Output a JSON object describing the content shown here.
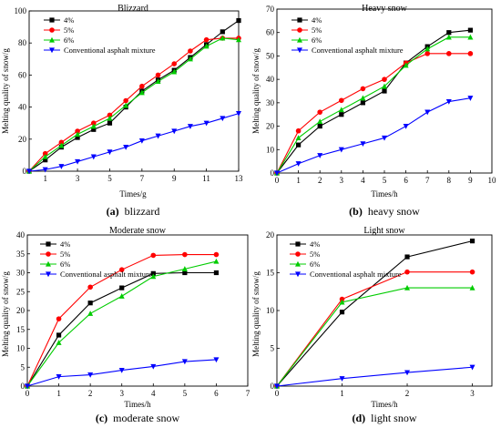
{
  "chart_data": [
    {
      "type": "line",
      "title": "Blizzard",
      "xlabel": "Times/g",
      "ylabel": "Melting quality of snow/g",
      "caption_letter": "(a)",
      "caption_text": "blizzard",
      "xlim": [
        0,
        13
      ],
      "ylim": [
        0,
        100
      ],
      "xticks": [
        1,
        3,
        5,
        7,
        9,
        11,
        13
      ],
      "yticks": [
        0,
        20,
        40,
        60,
        80,
        100
      ],
      "legend_position": "top-left",
      "series": [
        {
          "name": "4%",
          "color": "#000000",
          "marker": "square",
          "x": [
            0,
            1,
            2,
            3,
            4,
            5,
            6,
            7,
            8,
            9,
            10,
            11,
            12,
            13
          ],
          "y": [
            0,
            7,
            15,
            21,
            26,
            30,
            40,
            50,
            57,
            63,
            71,
            79,
            87,
            94
          ]
        },
        {
          "name": "5%",
          "color": "#ff0000",
          "marker": "circle",
          "x": [
            0,
            1,
            2,
            3,
            4,
            5,
            6,
            7,
            8,
            9,
            10,
            11,
            12,
            13
          ],
          "y": [
            0,
            11,
            18,
            25,
            30,
            35,
            44,
            53,
            60,
            67,
            75,
            82,
            83,
            83
          ]
        },
        {
          "name": "6%",
          "color": "#00cc00",
          "marker": "triangle",
          "x": [
            0,
            1,
            2,
            3,
            4,
            5,
            6,
            7,
            8,
            9,
            10,
            11,
            12,
            13
          ],
          "y": [
            0,
            9,
            16,
            23,
            28,
            33,
            41,
            49,
            56,
            62,
            70,
            78,
            83,
            82
          ]
        },
        {
          "name": "Conventional asphalt mixture",
          "color": "#0000ff",
          "marker": "tri-down",
          "x": [
            0,
            1,
            2,
            3,
            4,
            5,
            6,
            7,
            8,
            9,
            10,
            11,
            12,
            13
          ],
          "y": [
            0,
            1,
            3,
            6,
            9,
            12,
            15,
            19,
            22,
            25,
            28,
            30,
            33,
            36
          ]
        }
      ]
    },
    {
      "type": "line",
      "title": "Heavy snow",
      "xlabel": "Times/h",
      "ylabel": "Melting quality of snow/g",
      "caption_letter": "(b)",
      "caption_text": "heavy snow",
      "xlim": [
        0,
        10
      ],
      "ylim": [
        0,
        70
      ],
      "xticks": [
        0,
        1,
        2,
        3,
        4,
        5,
        6,
        7,
        8,
        9,
        10
      ],
      "yticks": [
        0,
        10,
        20,
        30,
        40,
        50,
        60,
        70
      ],
      "legend_position": "top-left",
      "series": [
        {
          "name": "4%",
          "color": "#000000",
          "marker": "square",
          "x": [
            0,
            1,
            2,
            3,
            4,
            5,
            6,
            7,
            8,
            9
          ],
          "y": [
            0,
            12,
            20,
            25,
            30,
            35,
            47,
            54,
            60,
            61
          ]
        },
        {
          "name": "5%",
          "color": "#ff0000",
          "marker": "circle",
          "x": [
            0,
            1,
            2,
            3,
            4,
            5,
            6,
            7,
            8,
            9
          ],
          "y": [
            0,
            18,
            26,
            31,
            36,
            40,
            47,
            51,
            51,
            51
          ]
        },
        {
          "name": "6%",
          "color": "#00cc00",
          "marker": "triangle",
          "x": [
            0,
            1,
            2,
            3,
            4,
            5,
            6,
            7,
            8,
            9
          ],
          "y": [
            0,
            15,
            22,
            27,
            32,
            37,
            46,
            53,
            58,
            58
          ]
        },
        {
          "name": "Conventional asphalt mixture",
          "color": "#0000ff",
          "marker": "tri-down",
          "x": [
            0,
            1,
            2,
            3,
            4,
            5,
            6,
            7,
            8,
            9
          ],
          "y": [
            0,
            4,
            7.5,
            10,
            12.5,
            15,
            20,
            26,
            30.5,
            32
          ]
        }
      ]
    },
    {
      "type": "line",
      "title": "Moderate snow",
      "xlabel": "Times/h",
      "ylabel": "Melting quality of snow/g",
      "caption_letter": "(c)",
      "caption_text": "moderate snow",
      "xlim": [
        0,
        7
      ],
      "ylim": [
        0,
        40
      ],
      "xticks": [
        0,
        1,
        2,
        3,
        4,
        5,
        6,
        7
      ],
      "yticks": [
        0,
        5,
        10,
        15,
        20,
        25,
        30,
        35,
        40
      ],
      "legend_position": "top-left",
      "series": [
        {
          "name": "4%",
          "color": "#000000",
          "marker": "square",
          "x": [
            0,
            1,
            2,
            3,
            4,
            5,
            6
          ],
          "y": [
            0,
            13.5,
            22,
            26,
            29.8,
            30,
            30
          ]
        },
        {
          "name": "5%",
          "color": "#ff0000",
          "marker": "circle",
          "x": [
            0,
            1,
            2,
            3,
            4,
            5,
            6
          ],
          "y": [
            0,
            17.8,
            26.2,
            30.8,
            34.6,
            34.8,
            34.8
          ]
        },
        {
          "name": "6%",
          "color": "#00cc00",
          "marker": "triangle",
          "x": [
            0,
            1,
            2,
            3,
            4,
            5,
            6
          ],
          "y": [
            0,
            11.5,
            19.2,
            23.8,
            29,
            31,
            33
          ]
        },
        {
          "name": "Conventional asphalt mixture",
          "color": "#0000ff",
          "marker": "tri-down",
          "x": [
            0,
            1,
            2,
            3,
            4,
            5,
            6
          ],
          "y": [
            0,
            2.5,
            3,
            4.2,
            5.2,
            6.5,
            7
          ]
        }
      ]
    },
    {
      "type": "line",
      "title": "Light snow",
      "xlabel": "Times/h",
      "ylabel": "Melting quality of snow/g",
      "caption_letter": "(d)",
      "caption_text": "light snow",
      "xlim": [
        0,
        3.3
      ],
      "ylim": [
        0,
        20
      ],
      "xticks": [
        0,
        1,
        2,
        3
      ],
      "yticks": [
        0,
        5,
        10,
        15,
        20
      ],
      "legend_position": "top-left",
      "series": [
        {
          "name": "4%",
          "color": "#000000",
          "marker": "square",
          "x": [
            0,
            1,
            2,
            3
          ],
          "y": [
            0,
            9.8,
            17.1,
            19.2
          ]
        },
        {
          "name": "5%",
          "color": "#ff0000",
          "marker": "circle",
          "x": [
            0,
            1,
            2,
            3
          ],
          "y": [
            0,
            11.5,
            15.1,
            15.1
          ]
        },
        {
          "name": "6%",
          "color": "#00cc00",
          "marker": "triangle",
          "x": [
            0,
            1,
            2,
            3
          ],
          "y": [
            0,
            11.1,
            13,
            13
          ]
        },
        {
          "name": "Conventional asphalt mixture",
          "color": "#0000ff",
          "marker": "tri-down",
          "x": [
            0,
            1,
            2,
            3
          ],
          "y": [
            0,
            1,
            1.8,
            2.5
          ]
        }
      ]
    }
  ]
}
